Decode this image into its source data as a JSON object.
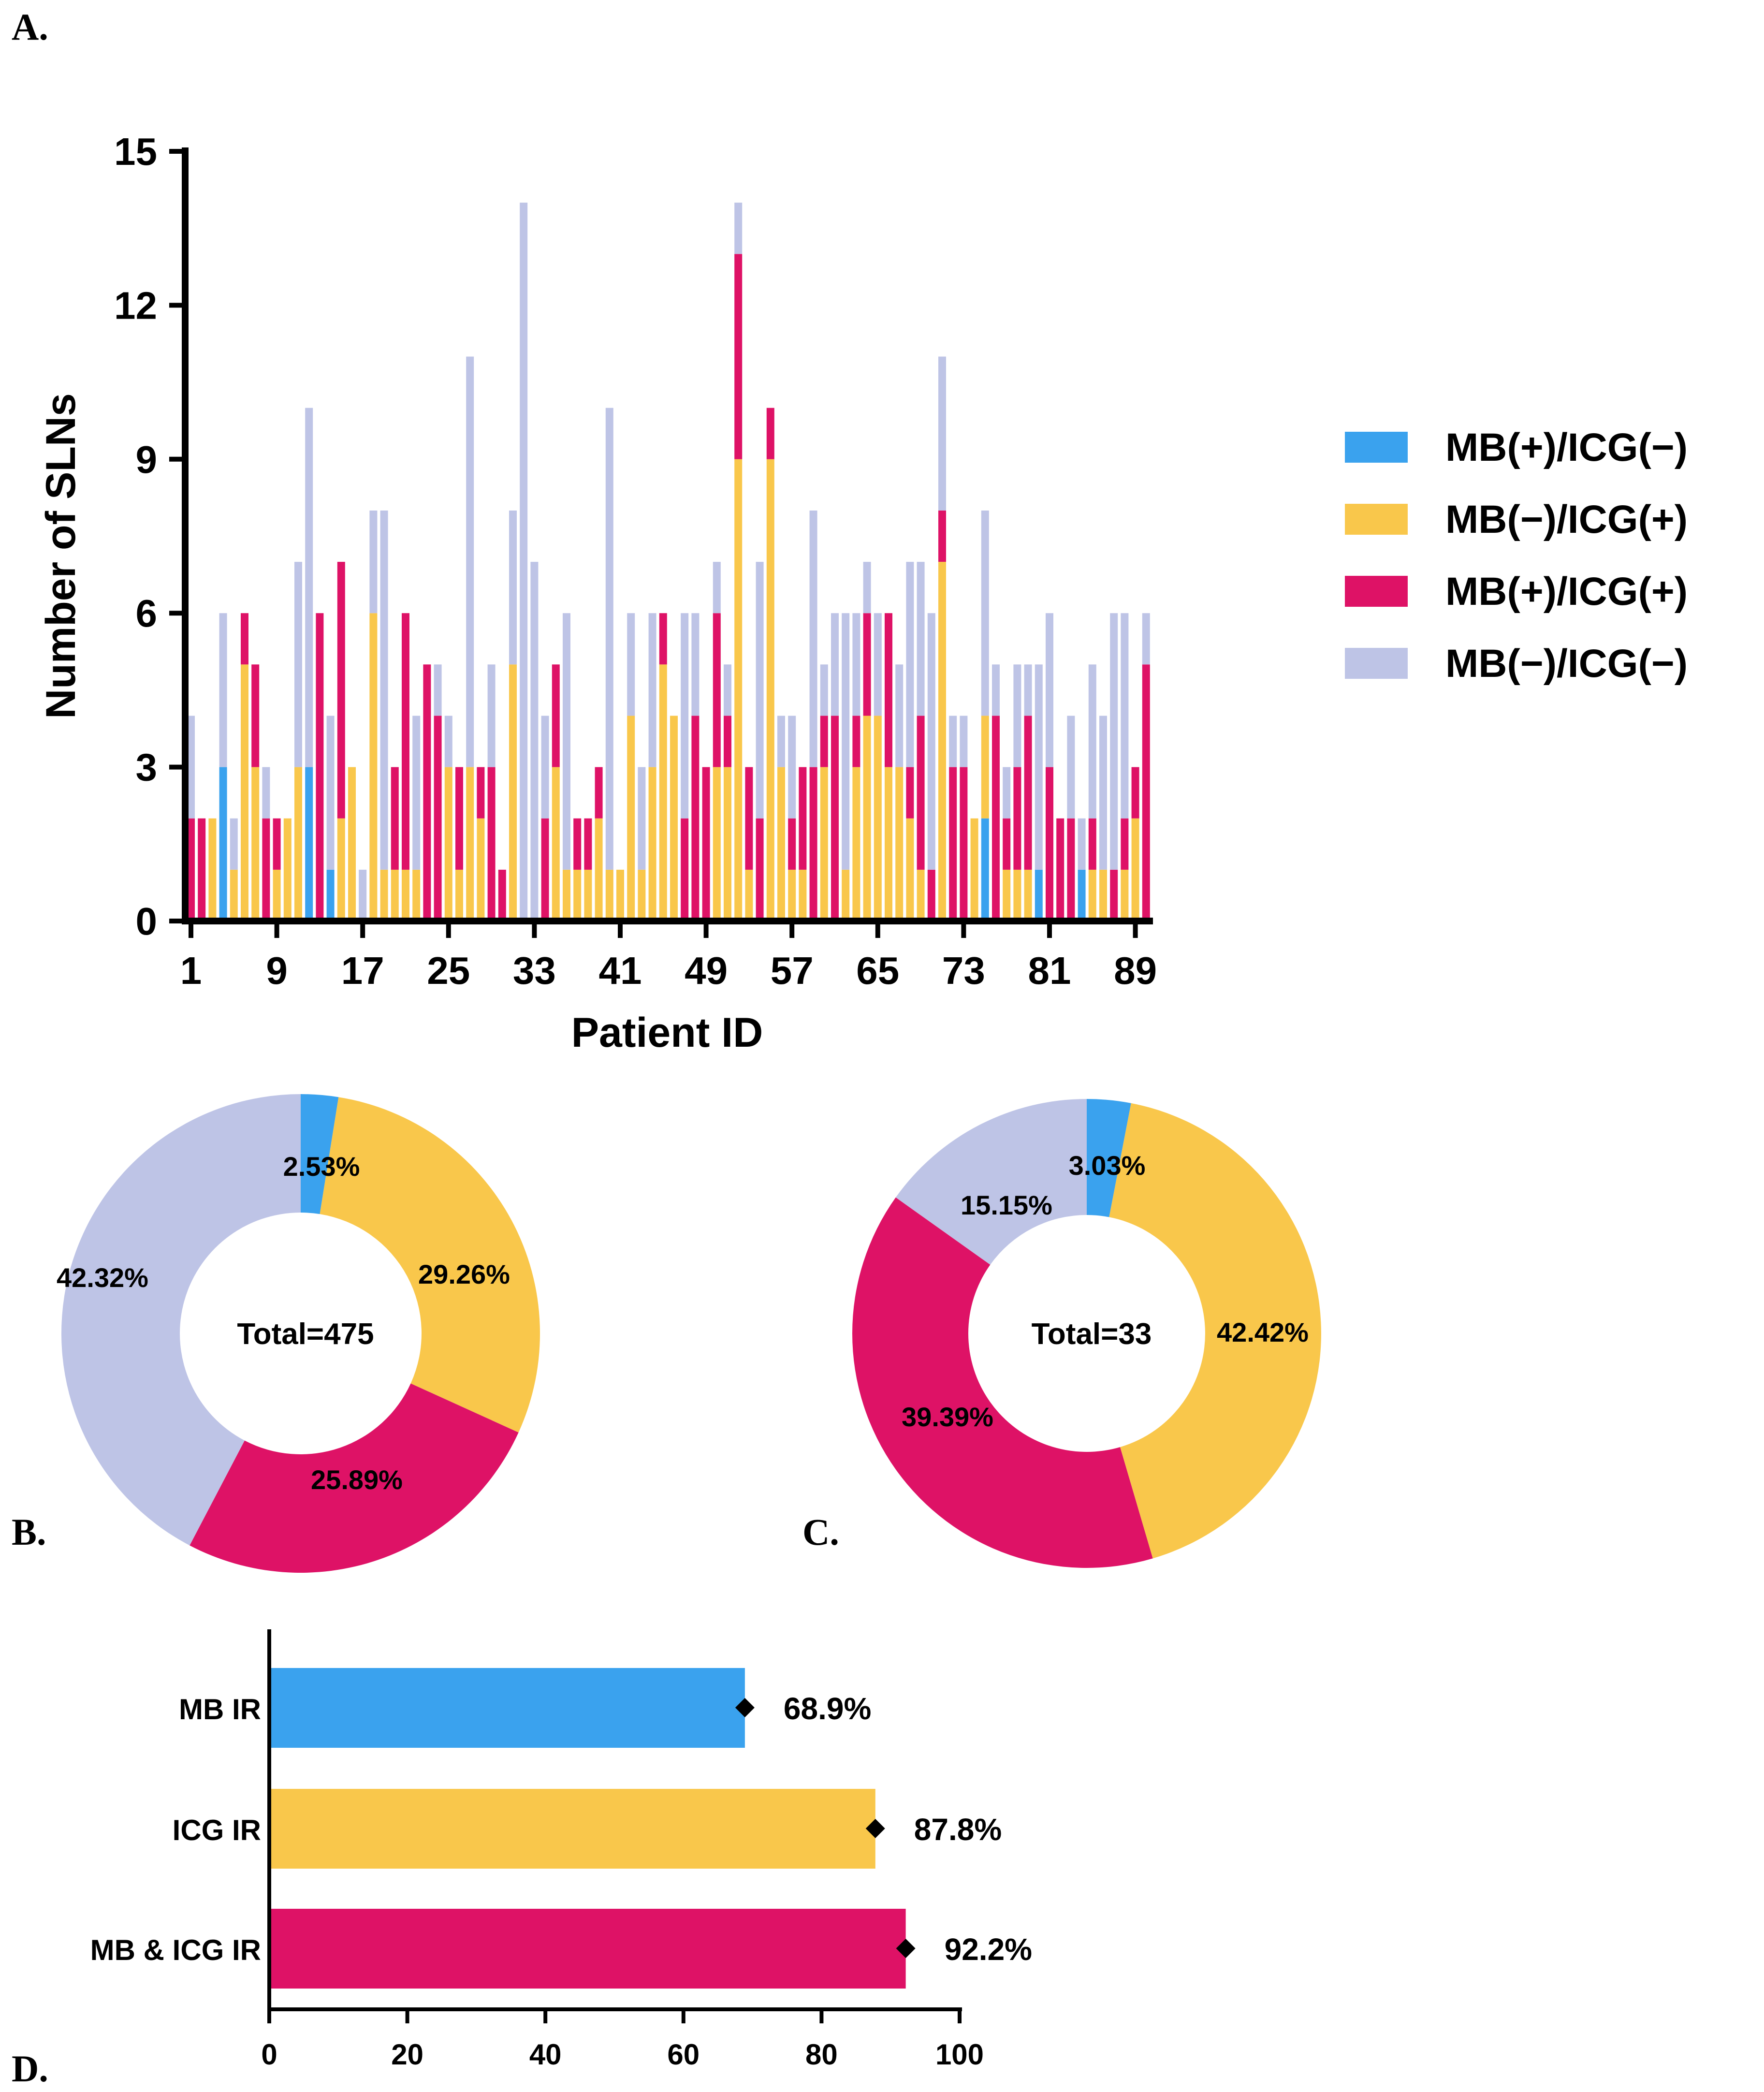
{
  "panels": {
    "a": "A.",
    "b": "B.",
    "c": "C.",
    "d": "D."
  },
  "colors": {
    "blue": "#3aa2ee",
    "yellow": "#f9c74b",
    "magenta": "#de1266",
    "lavender": "#bec4e6"
  },
  "chart_data": [
    {
      "type": "bar",
      "stacked": true,
      "title": "",
      "xlabel": "Patient ID",
      "ylabel": "Number of SLNs",
      "ylim": [
        0,
        15
      ],
      "yticks": [
        "0",
        "3",
        "6",
        "9",
        "12",
        "15"
      ],
      "xticks": [
        "1",
        "9",
        "17",
        "25",
        "33",
        "41",
        "49",
        "57",
        "65",
        "73",
        "81",
        "89"
      ],
      "legend": [
        "MB(+)/ICG(−)",
        "MB(−)/ICG(+)",
        "MB(+)/ICG(+)",
        "MB(−)/ICG(−)"
      ],
      "legend_position": "right",
      "bar_note": "Each bar is a [MB(+)/ICG(−), MB(−)/ICG(+), MB(+)/ICG(+), MB(−)/ICG(−)] stack, patients 1–90, values estimated from the figure",
      "bars": [
        [
          0,
          0,
          2,
          2
        ],
        [
          0,
          0,
          2,
          0
        ],
        [
          0,
          2,
          0,
          0
        ],
        [
          3,
          0,
          0,
          3
        ],
        [
          0,
          1,
          0,
          1
        ],
        [
          0,
          5,
          1,
          0
        ],
        [
          0,
          3,
          2,
          0
        ],
        [
          0,
          0,
          2,
          1
        ],
        [
          0,
          1,
          1,
          0
        ],
        [
          0,
          2,
          0,
          0
        ],
        [
          0,
          3,
          0,
          4
        ],
        [
          3,
          0,
          0,
          7
        ],
        [
          0,
          0,
          6,
          0
        ],
        [
          1,
          0,
          0,
          3
        ],
        [
          0,
          2,
          5,
          0
        ],
        [
          0,
          3,
          0,
          0
        ],
        [
          0,
          0,
          0,
          1
        ],
        [
          0,
          6,
          0,
          2
        ],
        [
          0,
          1,
          0,
          7
        ],
        [
          0,
          1,
          2,
          0
        ],
        [
          0,
          1,
          5,
          0
        ],
        [
          0,
          1,
          0,
          3
        ],
        [
          0,
          0,
          5,
          0
        ],
        [
          0,
          0,
          4,
          1
        ],
        [
          0,
          3,
          0,
          1
        ],
        [
          0,
          1,
          2,
          0
        ],
        [
          0,
          3,
          0,
          8
        ],
        [
          0,
          2,
          1,
          0
        ],
        [
          0,
          0,
          3,
          2
        ],
        [
          0,
          0,
          1,
          0
        ],
        [
          0,
          5,
          0,
          3
        ],
        [
          0,
          0,
          0,
          14
        ],
        [
          0,
          0,
          0,
          7
        ],
        [
          0,
          0,
          2,
          2
        ],
        [
          0,
          3,
          2,
          0
        ],
        [
          0,
          1,
          0,
          5
        ],
        [
          0,
          1,
          1,
          0
        ],
        [
          0,
          1,
          1,
          0
        ],
        [
          0,
          2,
          1,
          0
        ],
        [
          0,
          1,
          0,
          9
        ],
        [
          0,
          1,
          0,
          0
        ],
        [
          0,
          4,
          0,
          2
        ],
        [
          0,
          1,
          0,
          2
        ],
        [
          0,
          3,
          0,
          3
        ],
        [
          0,
          5,
          1,
          0
        ],
        [
          0,
          4,
          0,
          0
        ],
        [
          0,
          0,
          2,
          4
        ],
        [
          0,
          0,
          4,
          2
        ],
        [
          0,
          0,
          3,
          0
        ],
        [
          0,
          3,
          3,
          1
        ],
        [
          0,
          3,
          1,
          1
        ],
        [
          0,
          9,
          4,
          1
        ],
        [
          0,
          1,
          2,
          0
        ],
        [
          0,
          0,
          2,
          5
        ],
        [
          0,
          9,
          1,
          0
        ],
        [
          0,
          3,
          0,
          1
        ],
        [
          0,
          1,
          1,
          2
        ],
        [
          0,
          1,
          2,
          0
        ],
        [
          0,
          0,
          3,
          5
        ],
        [
          0,
          3,
          1,
          1
        ],
        [
          0,
          0,
          4,
          2
        ],
        [
          0,
          1,
          0,
          5
        ],
        [
          0,
          3,
          1,
          2
        ],
        [
          0,
          4,
          2,
          1
        ],
        [
          0,
          4,
          0,
          2
        ],
        [
          0,
          3,
          3,
          0
        ],
        [
          0,
          3,
          0,
          2
        ],
        [
          0,
          2,
          1,
          4
        ],
        [
          0,
          1,
          3,
          3
        ],
        [
          0,
          0,
          1,
          5
        ],
        [
          0,
          7,
          1,
          3
        ],
        [
          0,
          0,
          3,
          1
        ],
        [
          0,
          0,
          3,
          1
        ],
        [
          0,
          2,
          0,
          0
        ],
        [
          2,
          2,
          0,
          4
        ],
        [
          0,
          0,
          4,
          1
        ],
        [
          0,
          1,
          1,
          1
        ],
        [
          0,
          1,
          2,
          2
        ],
        [
          0,
          1,
          3,
          1
        ],
        [
          1,
          0,
          0,
          4
        ],
        [
          0,
          0,
          3,
          3
        ],
        [
          0,
          0,
          2,
          0
        ],
        [
          0,
          0,
          2,
          2
        ],
        [
          1,
          0,
          0,
          1
        ],
        [
          0,
          1,
          1,
          3
        ],
        [
          0,
          1,
          0,
          3
        ],
        [
          0,
          0,
          1,
          5
        ],
        [
          0,
          1,
          1,
          4
        ],
        [
          0,
          2,
          1,
          0
        ],
        [
          0,
          0,
          5,
          1
        ]
      ]
    },
    {
      "type": "pie",
      "donut": true,
      "center_label": "Total=475",
      "labels": [
        "MB(+)/ICG(−)",
        "MB(−)/ICG(+)",
        "MB(+)/ICG(+)",
        "MB(−)/ICG(−)"
      ],
      "values": [
        2.53,
        29.26,
        25.89,
        42.32
      ],
      "value_labels": [
        "2.53%",
        "29.26%",
        "25.89%",
        "42.32%"
      ]
    },
    {
      "type": "pie",
      "donut": true,
      "center_label": "Total=33",
      "labels": [
        "MB(+)/ICG(−)",
        "MB(−)/ICG(+)",
        "MB(+)/ICG(+)",
        "MB(−)/ICG(−)"
      ],
      "values": [
        3.03,
        42.42,
        39.39,
        15.15
      ],
      "value_labels": [
        "3.03%",
        "42.42%",
        "39.39%",
        "15.15%"
      ]
    },
    {
      "type": "bar",
      "orientation": "horizontal",
      "categories": [
        "MB IR",
        "ICG IR",
        "MB & ICG IR"
      ],
      "values": [
        68.9,
        87.8,
        92.2
      ],
      "value_labels": [
        "68.9%",
        "87.8%",
        "92.2%"
      ],
      "xlim": [
        0,
        100
      ],
      "xticks": [
        "0",
        "20",
        "40",
        "60",
        "80",
        "100"
      ]
    }
  ]
}
